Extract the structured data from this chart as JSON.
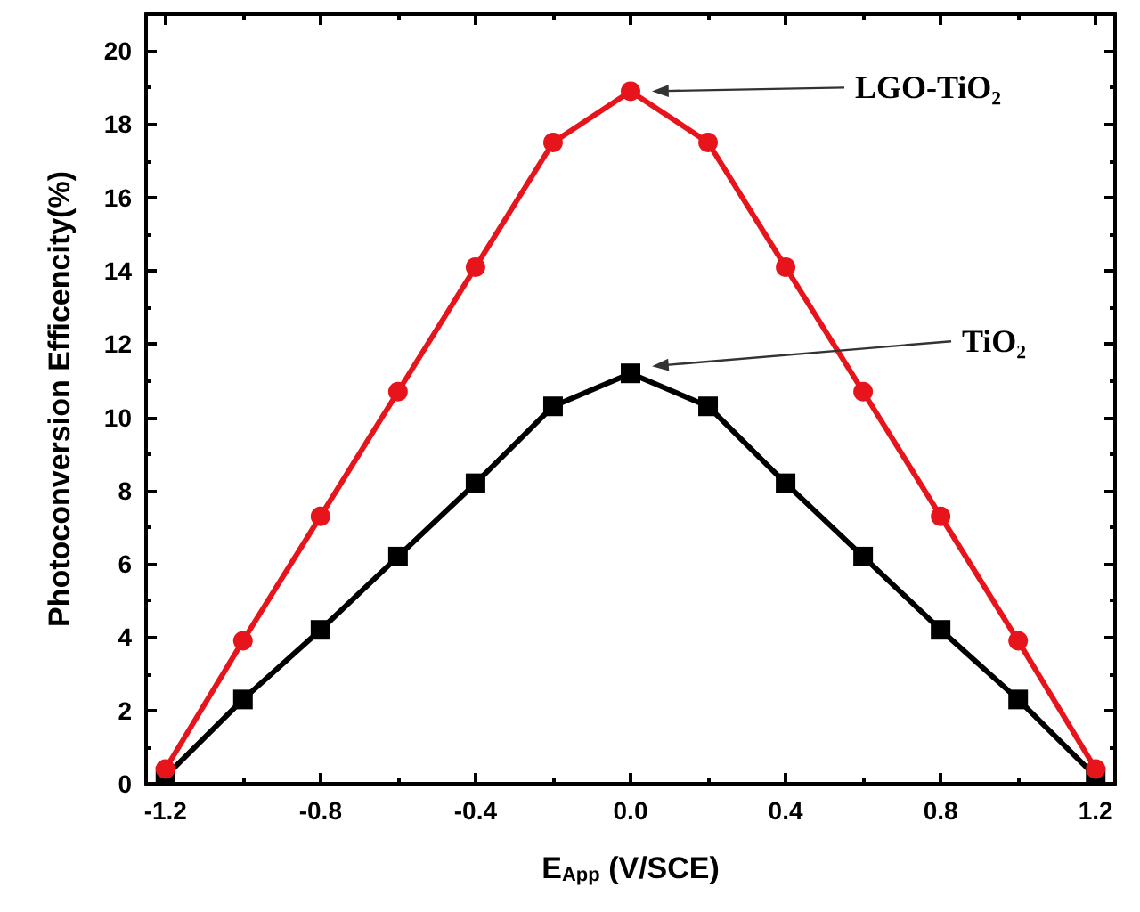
{
  "chart_data": {
    "type": "line",
    "xlabel": "E$_{App}$ (V/SCE)",
    "ylabel": "Photoconversion Efficencity(%)",
    "x": [
      -1.2,
      -1.0,
      -0.8,
      -0.6,
      -0.4,
      -0.2,
      0.0,
      0.2,
      0.4,
      0.6,
      0.8,
      1.0,
      1.2
    ],
    "series": [
      {
        "name": "LGO-TiO₂",
        "color": "#e8141c",
        "marker": "circle",
        "values": [
          0.4,
          3.9,
          7.3,
          10.7,
          14.1,
          17.5,
          18.9,
          17.5,
          14.1,
          10.7,
          7.3,
          3.9,
          0.4
        ]
      },
      {
        "name": "TiO₂",
        "color": "#000000",
        "marker": "square",
        "values": [
          0.2,
          2.3,
          4.2,
          6.2,
          8.2,
          10.3,
          11.2,
          10.3,
          8.2,
          6.2,
          4.2,
          2.3,
          0.2
        ]
      }
    ],
    "xlim": [
      -1.25,
      1.25
    ],
    "ylim": [
      0,
      21
    ],
    "xticks": [
      -1.2,
      -0.8,
      -0.4,
      {
        "value": 0,
        "label": "0.0"
      },
      0.4,
      0.8,
      1.2
    ],
    "yticks": [
      0,
      2,
      4,
      6,
      8,
      10,
      12,
      14,
      16,
      18,
      20
    ],
    "grid": false,
    "legend": false,
    "line_style": "solid"
  }
}
